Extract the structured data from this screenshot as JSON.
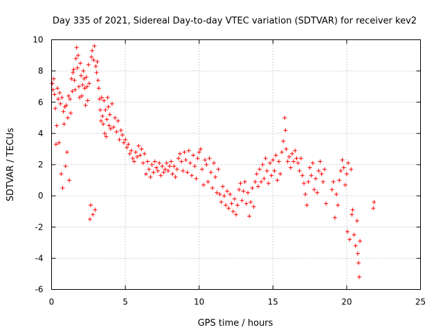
{
  "chart_data": {
    "type": "scatter",
    "title": "Day 335 of 2021, Sidereal Day-to-day VTEC variation (SDTVAR) for receiver kev2",
    "xlabel": "GPS time / hours",
    "ylabel": "SDTVAR / TECUs",
    "xlim": [
      0,
      25
    ],
    "ylim": [
      -6,
      10
    ],
    "xticks": [
      "0",
      "5",
      "10",
      "15",
      "20",
      "25"
    ],
    "yticks": [
      "-6",
      "-4",
      "-2",
      "0",
      "2",
      "4",
      "6",
      "8",
      "10"
    ],
    "grid": true,
    "marker": "+",
    "series_color": "#ff0000",
    "series": [
      {
        "name": "SDTVAR",
        "points": [
          [
            0.05,
            7.2
          ],
          [
            0.1,
            6.8
          ],
          [
            0.15,
            7.5
          ],
          [
            0.2,
            6.5
          ],
          [
            0.25,
            5.6
          ],
          [
            0.3,
            3.3
          ],
          [
            0.35,
            4.5
          ],
          [
            0.4,
            6.9
          ],
          [
            0.45,
            6.2
          ],
          [
            0.5,
            3.4
          ],
          [
            0.55,
            6.6
          ],
          [
            0.6,
            5.9
          ],
          [
            0.65,
            1.4
          ],
          [
            0.7,
            6.3
          ],
          [
            0.75,
            0.5
          ],
          [
            0.8,
            5.4
          ],
          [
            0.85,
            4.6
          ],
          [
            0.9,
            5.7
          ],
          [
            0.95,
            1.9
          ],
          [
            1.0,
            5.8
          ],
          [
            1.05,
            2.8
          ],
          [
            1.1,
            5.0
          ],
          [
            1.15,
            6.4
          ],
          [
            1.2,
            1.0
          ],
          [
            1.25,
            6.2
          ],
          [
            1.3,
            5.3
          ],
          [
            1.35,
            7.5
          ],
          [
            1.4,
            6.7
          ],
          [
            1.45,
            7.9
          ],
          [
            1.5,
            8.1
          ],
          [
            1.55,
            7.4
          ],
          [
            1.6,
            6.8
          ],
          [
            1.65,
            8.8
          ],
          [
            1.7,
            9.5
          ],
          [
            1.75,
            8.2
          ],
          [
            1.8,
            9.0
          ],
          [
            1.85,
            7.0
          ],
          [
            1.9,
            6.3
          ],
          [
            1.95,
            8.5
          ],
          [
            2.0,
            7.7
          ],
          [
            2.05,
            6.4
          ],
          [
            2.1,
            7.1
          ],
          [
            2.15,
            8.0
          ],
          [
            2.2,
            7.5
          ],
          [
            2.25,
            6.9
          ],
          [
            2.3,
            5.8
          ],
          [
            2.35,
            7.6
          ],
          [
            2.4,
            7.0
          ],
          [
            2.45,
            6.1
          ],
          [
            2.5,
            8.4
          ],
          [
            2.55,
            7.2
          ],
          [
            2.6,
            -1.5
          ],
          [
            2.65,
            -0.6
          ],
          [
            2.7,
            8.9
          ],
          [
            2.75,
            9.3
          ],
          [
            2.8,
            -1.2
          ],
          [
            2.85,
            8.7
          ],
          [
            2.9,
            9.6
          ],
          [
            2.95,
            -0.9
          ],
          [
            3.0,
            8.3
          ],
          [
            3.05,
            7.9
          ],
          [
            3.1,
            8.6
          ],
          [
            3.15,
            7.4
          ],
          [
            3.2,
            6.9
          ],
          [
            3.25,
            6.2
          ],
          [
            3.3,
            5.5
          ],
          [
            3.35,
            4.8
          ],
          [
            3.4,
            6.3
          ],
          [
            3.45,
            5.1
          ],
          [
            3.5,
            4.6
          ],
          [
            3.55,
            6.1
          ],
          [
            3.6,
            4.0
          ],
          [
            3.65,
            5.5
          ],
          [
            3.7,
            3.8
          ],
          [
            3.75,
            4.9
          ],
          [
            3.8,
            6.3
          ],
          [
            3.85,
            5.7
          ],
          [
            3.9,
            4.5
          ],
          [
            3.95,
            5.2
          ],
          [
            4.0,
            4.3
          ],
          [
            4.1,
            5.9
          ],
          [
            4.2,
            4.4
          ],
          [
            4.3,
            5.0
          ],
          [
            4.4,
            4.1
          ],
          [
            4.5,
            4.8
          ],
          [
            4.6,
            3.6
          ],
          [
            4.7,
            4.2
          ],
          [
            4.8,
            3.9
          ],
          [
            4.9,
            3.4
          ],
          [
            5.0,
            3.6
          ],
          [
            5.1,
            3.1
          ],
          [
            5.2,
            3.3
          ],
          [
            5.3,
            2.7
          ],
          [
            5.4,
            2.9
          ],
          [
            5.5,
            2.4
          ],
          [
            5.6,
            2.2
          ],
          [
            5.7,
            2.8
          ],
          [
            5.8,
            2.5
          ],
          [
            5.9,
            3.2
          ],
          [
            6.0,
            2.6
          ],
          [
            6.1,
            3.0
          ],
          [
            6.2,
            2.1
          ],
          [
            6.3,
            2.7
          ],
          [
            6.4,
            1.4
          ],
          [
            6.5,
            2.2
          ],
          [
            6.6,
            1.7
          ],
          [
            6.7,
            1.2
          ],
          [
            6.8,
            2.0
          ],
          [
            6.9,
            1.5
          ],
          [
            7.0,
            2.2
          ],
          [
            7.1,
            1.8
          ],
          [
            7.2,
            1.6
          ],
          [
            7.3,
            2.1
          ],
          [
            7.4,
            1.3
          ],
          [
            7.5,
            1.9
          ],
          [
            7.6,
            1.5
          ],
          [
            7.7,
            1.7
          ],
          [
            7.8,
            2.1
          ],
          [
            7.9,
            1.6
          ],
          [
            8.0,
            1.9
          ],
          [
            8.1,
            2.2
          ],
          [
            8.2,
            1.4
          ],
          [
            8.3,
            1.9
          ],
          [
            8.4,
            1.2
          ],
          [
            8.5,
            1.7
          ],
          [
            8.6,
            2.4
          ],
          [
            8.7,
            2.7
          ],
          [
            8.8,
            2.2
          ],
          [
            8.9,
            1.6
          ],
          [
            9.0,
            2.8
          ],
          [
            9.1,
            2.3
          ],
          [
            9.2,
            1.5
          ],
          [
            9.3,
            2.9
          ],
          [
            9.4,
            2.1
          ],
          [
            9.5,
            1.3
          ],
          [
            9.6,
            2.6
          ],
          [
            9.7,
            1.9
          ],
          [
            9.8,
            1.1
          ],
          [
            9.9,
            2.4
          ],
          [
            10.0,
            2.8
          ],
          [
            10.1,
            3.0
          ],
          [
            10.2,
            1.7
          ],
          [
            10.3,
            0.7
          ],
          [
            10.4,
            2.3
          ],
          [
            10.5,
            2.0
          ],
          [
            10.6,
            0.9
          ],
          [
            10.7,
            2.4
          ],
          [
            10.8,
            1.5
          ],
          [
            10.9,
            0.5
          ],
          [
            11.0,
            2.1
          ],
          [
            11.1,
            1.2
          ],
          [
            11.2,
            0.2
          ],
          [
            11.3,
            1.7
          ],
          [
            11.4,
            0.1
          ],
          [
            11.5,
            -0.4
          ],
          [
            11.6,
            0.6
          ],
          [
            11.7,
            0.0
          ],
          [
            11.8,
            -0.6
          ],
          [
            11.9,
            0.3
          ],
          [
            12.0,
            -0.8
          ],
          [
            12.1,
            0.1
          ],
          [
            12.2,
            -0.5
          ],
          [
            12.3,
            -1.0
          ],
          [
            12.4,
            -0.2
          ],
          [
            12.5,
            -1.2
          ],
          [
            12.6,
            -0.6
          ],
          [
            12.7,
            0.4
          ],
          [
            12.8,
            0.8
          ],
          [
            12.9,
            -0.3
          ],
          [
            13.0,
            0.3
          ],
          [
            13.1,
            0.9
          ],
          [
            13.2,
            -0.5
          ],
          [
            13.3,
            0.2
          ],
          [
            13.4,
            -1.3
          ],
          [
            13.5,
            -0.4
          ],
          [
            13.6,
            0.5
          ],
          [
            13.7,
            -0.7
          ],
          [
            13.8,
            0.9
          ],
          [
            13.9,
            1.4
          ],
          [
            14.0,
            0.6
          ],
          [
            14.1,
            1.7
          ],
          [
            14.2,
            0.9
          ],
          [
            14.3,
            2.0
          ],
          [
            14.4,
            1.1
          ],
          [
            14.5,
            2.4
          ],
          [
            14.6,
            1.6
          ],
          [
            14.7,
            0.8
          ],
          [
            14.8,
            2.1
          ],
          [
            14.9,
            1.3
          ],
          [
            15.0,
            2.3
          ],
          [
            15.1,
            1.6
          ],
          [
            15.2,
            2.6
          ],
          [
            15.3,
            1.0
          ],
          [
            15.4,
            2.2
          ],
          [
            15.5,
            1.4
          ],
          [
            15.6,
            2.8
          ],
          [
            15.7,
            3.5
          ],
          [
            15.8,
            5.0
          ],
          [
            15.85,
            4.2
          ],
          [
            15.9,
            3.0
          ],
          [
            16.0,
            2.2
          ],
          [
            16.1,
            2.5
          ],
          [
            16.2,
            1.8
          ],
          [
            16.3,
            2.7
          ],
          [
            16.4,
            2.2
          ],
          [
            16.5,
            2.9
          ],
          [
            16.6,
            2.4
          ],
          [
            16.7,
            2.1
          ],
          [
            16.8,
            1.6
          ],
          [
            16.9,
            2.4
          ],
          [
            17.0,
            1.3
          ],
          [
            17.1,
            0.8
          ],
          [
            17.2,
            0.1
          ],
          [
            17.3,
            -0.6
          ],
          [
            17.4,
            0.9
          ],
          [
            17.5,
            1.8
          ],
          [
            17.6,
            1.3
          ],
          [
            17.7,
            2.1
          ],
          [
            17.8,
            0.4
          ],
          [
            17.9,
            1.1
          ],
          [
            18.0,
            0.2
          ],
          [
            18.1,
            1.6
          ],
          [
            18.2,
            2.2
          ],
          [
            18.3,
            1.4
          ],
          [
            18.4,
            0.9
          ],
          [
            18.5,
            1.7
          ],
          [
            18.6,
            -0.5
          ],
          [
            19.0,
            0.4
          ],
          [
            19.1,
            0.9
          ],
          [
            19.2,
            -1.4
          ],
          [
            19.3,
            0.1
          ],
          [
            19.4,
            -0.6
          ],
          [
            19.5,
            1.0
          ],
          [
            19.6,
            1.6
          ],
          [
            19.7,
            2.3
          ],
          [
            19.8,
            1.8
          ],
          [
            19.9,
            0.7
          ],
          [
            20.0,
            1.4
          ],
          [
            20.05,
            -2.3
          ],
          [
            20.1,
            2.1
          ],
          [
            20.2,
            -2.8
          ],
          [
            20.3,
            1.7
          ],
          [
            20.35,
            -1.2
          ],
          [
            20.4,
            -0.9
          ],
          [
            20.5,
            -2.5
          ],
          [
            20.6,
            -3.2
          ],
          [
            20.7,
            -1.6
          ],
          [
            20.75,
            -3.7
          ],
          [
            20.8,
            -4.3
          ],
          [
            20.85,
            -5.2
          ],
          [
            20.9,
            -2.9
          ],
          [
            21.8,
            -0.8
          ],
          [
            21.85,
            -0.4
          ]
        ]
      }
    ]
  }
}
